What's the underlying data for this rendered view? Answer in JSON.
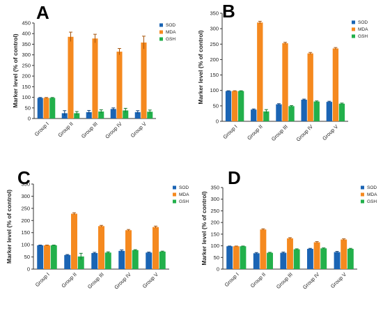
{
  "colors": {
    "SOD": "#1a64b4",
    "MDA": "#f5891f",
    "GSH": "#22b04b",
    "err_SOD": "#0d3f76",
    "err_MDA": "#a8560d",
    "err_GSH": "#117a2f"
  },
  "chart_data": [
    {
      "type": "bar",
      "letter": "A",
      "ylabel": "Marker level (% of control)",
      "ylim": [
        0,
        450
      ],
      "yticks": [
        0,
        50,
        100,
        150,
        200,
        250,
        300,
        350,
        400,
        450
      ],
      "categories": [
        "Group I",
        "Group II",
        "Group III",
        "Group IV",
        "Group V"
      ],
      "series": [
        {
          "name": "SOD",
          "values": [
            97,
            25,
            30,
            45,
            30
          ],
          "errors": [
            2,
            12,
            8,
            5,
            7
          ]
        },
        {
          "name": "MDA",
          "values": [
            97,
            385,
            377,
            315,
            358
          ],
          "errors": [
            2,
            22,
            20,
            15,
            30
          ]
        },
        {
          "name": "GSH",
          "values": [
            97,
            25,
            33,
            38,
            32
          ],
          "errors": [
            2,
            8,
            8,
            10,
            8
          ]
        }
      ],
      "legend": "top-right"
    },
    {
      "type": "bar",
      "letter": "B",
      "ylabel": "Marker level (% of control)",
      "ylim": [
        0,
        350
      ],
      "yticks": [
        0,
        50,
        100,
        150,
        200,
        250,
        300,
        350
      ],
      "categories": [
        "Group I",
        "Group II",
        "Group III",
        "Group IV",
        "Group V"
      ],
      "series": [
        {
          "name": "SOD",
          "values": [
            98,
            38,
            55,
            70,
            63
          ],
          "errors": [
            1,
            2,
            2,
            2,
            2
          ]
        },
        {
          "name": "MDA",
          "values": [
            98,
            320,
            253,
            220,
            236
          ],
          "errors": [
            1,
            4,
            3,
            3,
            3
          ]
        },
        {
          "name": "GSH",
          "values": [
            98,
            32,
            49,
            64,
            57
          ],
          "errors": [
            1,
            6,
            2,
            2,
            2
          ]
        }
      ],
      "legend": "top-right"
    },
    {
      "type": "bar",
      "letter": "C",
      "ylabel": "Marker level (% of control)",
      "ylim": [
        0,
        350
      ],
      "yticks": [
        0,
        50,
        100,
        150,
        200,
        250,
        300,
        350
      ],
      "categories": [
        "Group I",
        "Group II",
        "Group III",
        "Group IV",
        "Group V"
      ],
      "series": [
        {
          "name": "SOD",
          "values": [
            98,
            58,
            66,
            75,
            68
          ],
          "errors": [
            1,
            2,
            3,
            4,
            2
          ]
        },
        {
          "name": "MDA",
          "values": [
            98,
            228,
            177,
            160,
            173
          ],
          "errors": [
            1,
            4,
            3,
            3,
            4
          ]
        },
        {
          "name": "GSH",
          "values": [
            98,
            52,
            68,
            78,
            72
          ],
          "errors": [
            1,
            13,
            3,
            2,
            2
          ]
        }
      ],
      "legend": "top-right"
    },
    {
      "type": "bar",
      "letter": "D",
      "ylabel": "Marker level (% of control)",
      "ylim": [
        0,
        350
      ],
      "yticks": [
        0,
        50,
        100,
        150,
        200,
        250,
        300,
        350
      ],
      "categories": [
        "Group I",
        "Group II",
        "Group III",
        "Group IV",
        "Group V"
      ],
      "series": [
        {
          "name": "SOD",
          "values": [
            98,
            68,
            70,
            87,
            73
          ],
          "errors": [
            1,
            3,
            3,
            2,
            3
          ]
        },
        {
          "name": "MDA",
          "values": [
            98,
            170,
            132,
            115,
            127
          ],
          "errors": [
            1,
            3,
            3,
            3,
            3
          ]
        },
        {
          "name": "GSH",
          "values": [
            98,
            70,
            85,
            89,
            87
          ],
          "errors": [
            1,
            2,
            2,
            2,
            2
          ]
        }
      ],
      "legend": "top-right"
    }
  ]
}
